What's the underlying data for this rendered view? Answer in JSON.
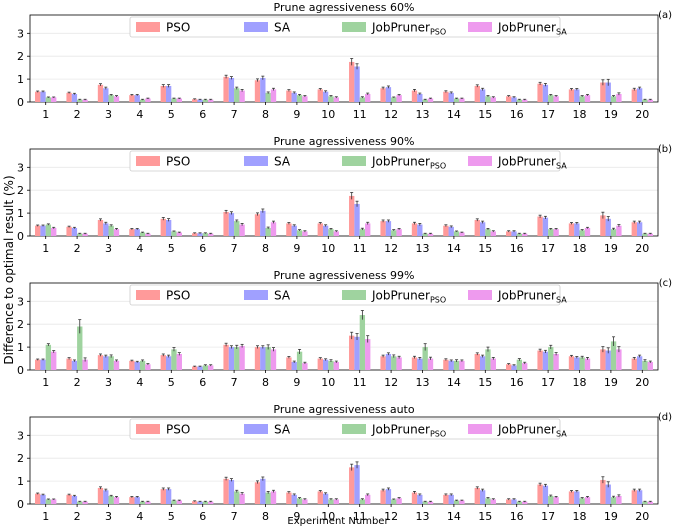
{
  "figure": {
    "ylabel": "Difference to optimal result (%)",
    "xlabel": "Experiment Number"
  },
  "legend": [
    {
      "name": "PSO",
      "sub": "",
      "color": "#ff9a9a"
    },
    {
      "name": "SA",
      "sub": "",
      "color": "#a0a0ff"
    },
    {
      "name": "JobPruner",
      "sub": "PSO",
      "color": "#9fd39f"
    },
    {
      "name": "JobPruner",
      "sub": "SA",
      "color": "#ee9aee"
    }
  ],
  "chart_data": [
    {
      "type": "bar",
      "title": "Prune agressiveness 60%",
      "panel_label": "(a)",
      "ylim": [
        0,
        3.8
      ],
      "yticks": [
        0,
        1,
        2,
        3
      ],
      "grid": true,
      "legend_position": "top-center",
      "categories": [
        "1",
        "2",
        "3",
        "4",
        "5",
        "6",
        "7",
        "8",
        "9",
        "10",
        "11",
        "12",
        "13",
        "14",
        "15",
        "16",
        "17",
        "18",
        "19",
        "20"
      ],
      "series": [
        {
          "name": "PSO",
          "values": [
            0.45,
            0.4,
            0.75,
            0.3,
            0.7,
            0.12,
            1.1,
            0.95,
            0.5,
            0.55,
            1.75,
            0.6,
            0.5,
            0.45,
            0.7,
            0.25,
            0.8,
            0.55,
            0.85,
            0.55
          ],
          "errors": [
            0.03,
            0.03,
            0.05,
            0.03,
            0.06,
            0.02,
            0.07,
            0.06,
            0.04,
            0.04,
            0.15,
            0.05,
            0.05,
            0.04,
            0.05,
            0.03,
            0.06,
            0.04,
            0.12,
            0.05
          ]
        },
        {
          "name": "SA",
          "values": [
            0.45,
            0.35,
            0.6,
            0.3,
            0.7,
            0.1,
            1.05,
            1.05,
            0.4,
            0.45,
            1.55,
            0.65,
            0.35,
            0.4,
            0.55,
            0.2,
            0.75,
            0.55,
            0.85,
            0.6
          ],
          "errors": [
            0.03,
            0.03,
            0.05,
            0.03,
            0.06,
            0.02,
            0.06,
            0.08,
            0.04,
            0.04,
            0.12,
            0.05,
            0.04,
            0.04,
            0.05,
            0.03,
            0.06,
            0.04,
            0.14,
            0.05
          ]
        },
        {
          "name": "JobPruner PSO",
          "values": [
            0.2,
            0.1,
            0.3,
            0.1,
            0.15,
            0.1,
            0.6,
            0.4,
            0.3,
            0.25,
            0.2,
            0.2,
            0.1,
            0.15,
            0.25,
            0.1,
            0.3,
            0.25,
            0.25,
            0.1
          ],
          "errors": [
            0.02,
            0.02,
            0.03,
            0.02,
            0.02,
            0.02,
            0.05,
            0.04,
            0.03,
            0.03,
            0.03,
            0.02,
            0.02,
            0.02,
            0.03,
            0.02,
            0.03,
            0.03,
            0.03,
            0.02
          ]
        },
        {
          "name": "JobPruner SA",
          "values": [
            0.2,
            0.1,
            0.25,
            0.15,
            0.15,
            0.1,
            0.5,
            0.55,
            0.25,
            0.2,
            0.35,
            0.3,
            0.15,
            0.15,
            0.2,
            0.1,
            0.25,
            0.3,
            0.35,
            0.1
          ],
          "errors": [
            0.02,
            0.02,
            0.03,
            0.02,
            0.02,
            0.02,
            0.05,
            0.05,
            0.03,
            0.03,
            0.04,
            0.03,
            0.02,
            0.02,
            0.03,
            0.02,
            0.03,
            0.03,
            0.05,
            0.02
          ]
        }
      ]
    },
    {
      "type": "bar",
      "title": "Prune agressiveness 90%",
      "panel_label": "(b)",
      "ylim": [
        0,
        3.8
      ],
      "yticks": [
        0,
        1,
        2,
        3
      ],
      "grid": true,
      "legend_position": "top-center",
      "categories": [
        "1",
        "2",
        "3",
        "4",
        "5",
        "6",
        "7",
        "8",
        "9",
        "10",
        "11",
        "12",
        "13",
        "14",
        "15",
        "16",
        "17",
        "18",
        "19",
        "20"
      ],
      "series": [
        {
          "name": "PSO",
          "values": [
            0.45,
            0.4,
            0.7,
            0.3,
            0.75,
            0.12,
            1.05,
            0.95,
            0.55,
            0.55,
            1.75,
            0.65,
            0.55,
            0.45,
            0.7,
            0.2,
            0.85,
            0.55,
            0.9,
            0.6
          ],
          "errors": [
            0.03,
            0.03,
            0.05,
            0.03,
            0.06,
            0.02,
            0.07,
            0.06,
            0.04,
            0.04,
            0.15,
            0.05,
            0.05,
            0.04,
            0.05,
            0.03,
            0.06,
            0.04,
            0.14,
            0.05
          ]
        },
        {
          "name": "SA",
          "values": [
            0.45,
            0.35,
            0.55,
            0.3,
            0.7,
            0.12,
            1.0,
            1.1,
            0.45,
            0.45,
            1.4,
            0.65,
            0.5,
            0.4,
            0.6,
            0.2,
            0.8,
            0.55,
            0.75,
            0.6
          ],
          "errors": [
            0.03,
            0.03,
            0.05,
            0.03,
            0.06,
            0.02,
            0.06,
            0.08,
            0.04,
            0.04,
            0.12,
            0.05,
            0.05,
            0.04,
            0.05,
            0.03,
            0.06,
            0.04,
            0.1,
            0.05
          ]
        },
        {
          "name": "JobPruner PSO",
          "values": [
            0.5,
            0.1,
            0.45,
            0.15,
            0.2,
            0.12,
            0.65,
            0.35,
            0.25,
            0.3,
            0.3,
            0.25,
            0.1,
            0.2,
            0.3,
            0.1,
            0.3,
            0.25,
            0.3,
            0.1
          ],
          "errors": [
            0.03,
            0.02,
            0.04,
            0.02,
            0.02,
            0.02,
            0.05,
            0.04,
            0.03,
            0.03,
            0.04,
            0.03,
            0.02,
            0.02,
            0.03,
            0.02,
            0.03,
            0.03,
            0.04,
            0.02
          ]
        },
        {
          "name": "JobPruner SA",
          "values": [
            0.35,
            0.1,
            0.3,
            0.1,
            0.15,
            0.1,
            0.5,
            0.6,
            0.2,
            0.2,
            0.55,
            0.3,
            0.1,
            0.15,
            0.2,
            0.1,
            0.3,
            0.35,
            0.45,
            0.1
          ],
          "errors": [
            0.03,
            0.02,
            0.03,
            0.02,
            0.02,
            0.02,
            0.05,
            0.05,
            0.03,
            0.03,
            0.05,
            0.03,
            0.02,
            0.02,
            0.03,
            0.02,
            0.03,
            0.03,
            0.05,
            0.02
          ]
        }
      ]
    },
    {
      "type": "bar",
      "title": "Prune agressiveness 99%",
      "panel_label": "(c)",
      "ylim": [
        0,
        3.8
      ],
      "yticks": [
        0,
        1,
        2,
        3
      ],
      "grid": true,
      "legend_position": "top-center",
      "categories": [
        "1",
        "2",
        "3",
        "4",
        "5",
        "6",
        "7",
        "8",
        "9",
        "10",
        "11",
        "12",
        "13",
        "14",
        "15",
        "16",
        "17",
        "18",
        "19",
        "20"
      ],
      "series": [
        {
          "name": "PSO",
          "values": [
            0.45,
            0.5,
            0.65,
            0.4,
            0.65,
            0.15,
            1.1,
            1.0,
            0.55,
            0.5,
            1.5,
            0.6,
            0.55,
            0.45,
            0.7,
            0.25,
            0.85,
            0.6,
            0.9,
            0.5
          ],
          "errors": [
            0.03,
            0.04,
            0.05,
            0.03,
            0.05,
            0.02,
            0.07,
            0.06,
            0.04,
            0.04,
            0.15,
            0.05,
            0.05,
            0.04,
            0.05,
            0.03,
            0.06,
            0.04,
            0.12,
            0.05
          ]
        },
        {
          "name": "SA",
          "values": [
            0.45,
            0.4,
            0.6,
            0.35,
            0.6,
            0.15,
            1.0,
            1.0,
            0.35,
            0.45,
            1.45,
            0.7,
            0.5,
            0.4,
            0.6,
            0.2,
            0.8,
            0.55,
            0.85,
            0.6
          ],
          "errors": [
            0.03,
            0.04,
            0.05,
            0.03,
            0.05,
            0.02,
            0.06,
            0.06,
            0.04,
            0.04,
            0.14,
            0.05,
            0.05,
            0.04,
            0.05,
            0.03,
            0.06,
            0.04,
            0.12,
            0.05
          ]
        },
        {
          "name": "JobPruner PSO",
          "values": [
            1.1,
            1.9,
            0.6,
            0.4,
            0.9,
            0.2,
            1.0,
            1.0,
            0.8,
            0.4,
            2.4,
            0.6,
            1.0,
            0.4,
            0.9,
            0.45,
            1.0,
            0.55,
            1.25,
            0.4
          ],
          "errors": [
            0.05,
            0.3,
            0.06,
            0.04,
            0.08,
            0.03,
            0.08,
            0.1,
            0.1,
            0.05,
            0.2,
            0.06,
            0.15,
            0.05,
            0.1,
            0.05,
            0.08,
            0.05,
            0.2,
            0.05
          ]
        },
        {
          "name": "JobPruner SA",
          "values": [
            0.8,
            0.45,
            0.4,
            0.25,
            0.7,
            0.2,
            1.05,
            0.9,
            0.3,
            0.35,
            1.35,
            0.55,
            0.5,
            0.4,
            0.5,
            0.3,
            0.7,
            0.5,
            0.9,
            0.35
          ],
          "errors": [
            0.05,
            0.08,
            0.04,
            0.03,
            0.06,
            0.03,
            0.07,
            0.08,
            0.04,
            0.04,
            0.15,
            0.05,
            0.06,
            0.04,
            0.05,
            0.04,
            0.06,
            0.05,
            0.12,
            0.04
          ]
        }
      ]
    },
    {
      "type": "bar",
      "title": "Prune agressiveness auto",
      "panel_label": "(d)",
      "ylim": [
        0,
        3.8
      ],
      "yticks": [
        0,
        1,
        2,
        3
      ],
      "grid": true,
      "legend_position": "top-center",
      "categories": [
        "1",
        "2",
        "3",
        "4",
        "5",
        "6",
        "7",
        "8",
        "9",
        "10",
        "11",
        "12",
        "13",
        "14",
        "15",
        "16",
        "17",
        "18",
        "19",
        "20"
      ],
      "series": [
        {
          "name": "PSO",
          "values": [
            0.45,
            0.4,
            0.7,
            0.3,
            0.65,
            0.12,
            1.1,
            0.95,
            0.5,
            0.55,
            1.6,
            0.6,
            0.5,
            0.4,
            0.7,
            0.2,
            0.85,
            0.55,
            1.05,
            0.6
          ],
          "errors": [
            0.03,
            0.03,
            0.05,
            0.03,
            0.05,
            0.02,
            0.07,
            0.06,
            0.04,
            0.04,
            0.14,
            0.05,
            0.05,
            0.04,
            0.05,
            0.03,
            0.06,
            0.04,
            0.14,
            0.05
          ]
        },
        {
          "name": "SA",
          "values": [
            0.4,
            0.35,
            0.6,
            0.3,
            0.65,
            0.1,
            1.05,
            1.1,
            0.4,
            0.45,
            1.7,
            0.65,
            0.4,
            0.4,
            0.6,
            0.2,
            0.8,
            0.55,
            0.85,
            0.6
          ],
          "errors": [
            0.03,
            0.03,
            0.05,
            0.03,
            0.05,
            0.02,
            0.06,
            0.08,
            0.04,
            0.04,
            0.14,
            0.05,
            0.04,
            0.04,
            0.05,
            0.03,
            0.06,
            0.04,
            0.12,
            0.05
          ]
        },
        {
          "name": "JobPruner PSO",
          "values": [
            0.2,
            0.1,
            0.35,
            0.1,
            0.15,
            0.1,
            0.55,
            0.5,
            0.25,
            0.2,
            0.2,
            0.2,
            0.1,
            0.15,
            0.25,
            0.1,
            0.35,
            0.25,
            0.3,
            0.1
          ],
          "errors": [
            0.02,
            0.02,
            0.03,
            0.02,
            0.02,
            0.02,
            0.05,
            0.05,
            0.03,
            0.03,
            0.03,
            0.02,
            0.02,
            0.02,
            0.03,
            0.02,
            0.04,
            0.03,
            0.04,
            0.02
          ]
        },
        {
          "name": "JobPruner SA",
          "values": [
            0.2,
            0.1,
            0.3,
            0.1,
            0.15,
            0.1,
            0.45,
            0.55,
            0.2,
            0.2,
            0.4,
            0.25,
            0.1,
            0.15,
            0.2,
            0.1,
            0.3,
            0.3,
            0.35,
            0.1
          ],
          "errors": [
            0.02,
            0.02,
            0.03,
            0.02,
            0.02,
            0.02,
            0.05,
            0.05,
            0.03,
            0.03,
            0.04,
            0.03,
            0.02,
            0.02,
            0.03,
            0.02,
            0.03,
            0.03,
            0.05,
            0.02
          ]
        }
      ]
    }
  ]
}
